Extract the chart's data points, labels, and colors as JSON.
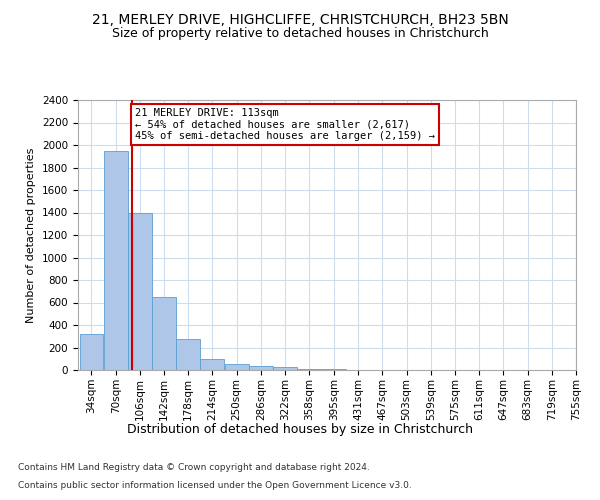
{
  "title1": "21, MERLEY DRIVE, HIGHCLIFFE, CHRISTCHURCH, BH23 5BN",
  "title2": "Size of property relative to detached houses in Christchurch",
  "xlabel": "Distribution of detached houses by size in Christchurch",
  "ylabel": "Number of detached properties",
  "bar_heights": [
    320,
    1950,
    1400,
    650,
    275,
    100,
    50,
    35,
    25,
    10,
    5,
    3,
    2,
    1,
    1,
    0,
    0,
    0,
    0,
    0
  ],
  "bin_edges": [
    34,
    70,
    106,
    142,
    178,
    214,
    250,
    286,
    322,
    358,
    395,
    431,
    467,
    503,
    539,
    575,
    611,
    647,
    683,
    719,
    755
  ],
  "bar_color": "#aec6e8",
  "bar_edgecolor": "#5a9fd4",
  "vline_x": 113,
  "vline_color": "#cc0000",
  "annotation_text": "21 MERLEY DRIVE: 113sqm\n← 54% of detached houses are smaller (2,617)\n45% of semi-detached houses are larger (2,159) →",
  "annotation_box_color": "#cc0000",
  "annotation_bg": "#ffffff",
  "ylim": [
    0,
    2400
  ],
  "yticks": [
    0,
    200,
    400,
    600,
    800,
    1000,
    1200,
    1400,
    1600,
    1800,
    2000,
    2200,
    2400
  ],
  "grid_color": "#ccddee",
  "footnote1": "Contains HM Land Registry data © Crown copyright and database right 2024.",
  "footnote2": "Contains public sector information licensed under the Open Government Licence v3.0.",
  "title1_fontsize": 10,
  "title2_fontsize": 9,
  "xlabel_fontsize": 9,
  "ylabel_fontsize": 8,
  "tick_fontsize": 7.5,
  "annotation_fontsize": 7.5,
  "footnote_fontsize": 6.5
}
